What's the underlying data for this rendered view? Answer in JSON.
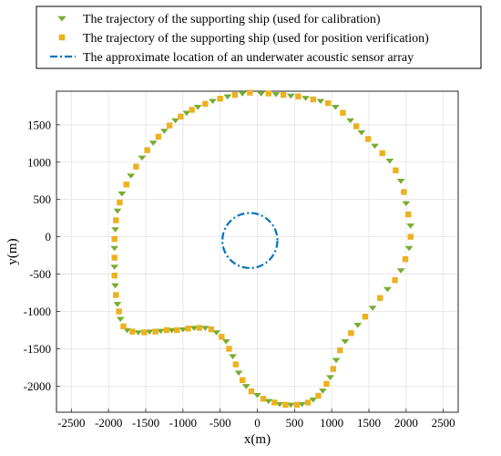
{
  "chart_data": {
    "type": "scatter",
    "title": "",
    "xlabel": "x(m)",
    "ylabel": "y(m)",
    "xlim": [
      -2700,
      2700
    ],
    "ylim": [
      -2350,
      1950
    ],
    "xticks": [
      -2500,
      -2000,
      -1500,
      -1000,
      -500,
      0,
      500,
      1000,
      1500,
      2000,
      2500
    ],
    "yticks": [
      -2000,
      -1500,
      -1000,
      -500,
      0,
      500,
      1000,
      1500
    ],
    "grid": true,
    "legend_position": "top",
    "legend": [
      {
        "label": "The trajectory of the supporting ship (used for calibration)",
        "marker": "triangle-down",
        "color": "#77ac30"
      },
      {
        "label": "The trajectory of the supporting ship (used for position verification)",
        "marker": "square",
        "color": "#edb120"
      },
      {
        "label": "The approximate location of an underwater acoustic sensor array",
        "marker": "dash-dot-line",
        "color": "#0072bd"
      }
    ],
    "series": [
      {
        "name": "The trajectory of the supporting ship (used for calibration)",
        "marker": "triangle-down",
        "color": "#77ac30",
        "points": [
          [
            -200,
            1920
          ],
          [
            -400,
            1880
          ],
          [
            -600,
            1820
          ],
          [
            -800,
            1740
          ],
          [
            -950,
            1660
          ],
          [
            -1100,
            1560
          ],
          [
            -1250,
            1420
          ],
          [
            -1400,
            1260
          ],
          [
            -1550,
            1060
          ],
          [
            -1700,
            820
          ],
          [
            -1820,
            580
          ],
          [
            -1880,
            350
          ],
          [
            -1910,
            100
          ],
          [
            -1920,
            -150
          ],
          [
            -1920,
            -400
          ],
          [
            -1910,
            -650
          ],
          [
            -1880,
            -900
          ],
          [
            -1840,
            -1100
          ],
          [
            -1750,
            -1250
          ],
          [
            -1600,
            -1280
          ],
          [
            -1450,
            -1270
          ],
          [
            -1300,
            -1260
          ],
          [
            -1150,
            -1250
          ],
          [
            -1000,
            -1240
          ],
          [
            -850,
            -1220
          ],
          [
            -700,
            -1220
          ],
          [
            -550,
            -1280
          ],
          [
            -420,
            -1400
          ],
          [
            -330,
            -1600
          ],
          [
            -250,
            -1820
          ],
          [
            -150,
            -2000
          ],
          [
            0,
            -2120
          ],
          [
            150,
            -2200
          ],
          [
            300,
            -2240
          ],
          [
            450,
            -2250
          ],
          [
            600,
            -2240
          ],
          [
            750,
            -2180
          ],
          [
            880,
            -2060
          ],
          [
            980,
            -1880
          ],
          [
            1060,
            -1650
          ],
          [
            1180,
            -1400
          ],
          [
            1350,
            -1180
          ],
          [
            1550,
            -950
          ],
          [
            1750,
            -700
          ],
          [
            1930,
            -450
          ],
          [
            2040,
            -150
          ],
          [
            2060,
            150
          ],
          [
            2000,
            450
          ],
          [
            1930,
            750
          ],
          [
            1780,
            1020
          ],
          [
            1580,
            1220
          ],
          [
            1400,
            1400
          ],
          [
            1250,
            1560
          ],
          [
            1050,
            1740
          ],
          [
            850,
            1820
          ],
          [
            650,
            1860
          ],
          [
            450,
            1890
          ],
          [
            250,
            1910
          ],
          [
            50,
            1920
          ]
        ]
      },
      {
        "name": "The trajectory of the supporting ship (used for position verification)",
        "marker": "square",
        "color": "#edb120",
        "points": [
          [
            -100,
            1930
          ],
          [
            -300,
            1900
          ],
          [
            -500,
            1850
          ],
          [
            -700,
            1780
          ],
          [
            -880,
            1700
          ],
          [
            -1030,
            1610
          ],
          [
            -1180,
            1490
          ],
          [
            -1330,
            1340
          ],
          [
            -1480,
            1160
          ],
          [
            -1630,
            940
          ],
          [
            -1760,
            700
          ],
          [
            -1850,
            460
          ],
          [
            -1900,
            220
          ],
          [
            -1920,
            -30
          ],
          [
            -1920,
            -280
          ],
          [
            -1920,
            -520
          ],
          [
            -1900,
            -780
          ],
          [
            -1860,
            -1000
          ],
          [
            -1800,
            -1200
          ],
          [
            -1680,
            -1270
          ],
          [
            -1520,
            -1280
          ],
          [
            -1370,
            -1270
          ],
          [
            -1220,
            -1250
          ],
          [
            -1080,
            -1250
          ],
          [
            -930,
            -1230
          ],
          [
            -780,
            -1220
          ],
          [
            -620,
            -1240
          ],
          [
            -480,
            -1340
          ],
          [
            -380,
            -1500
          ],
          [
            -290,
            -1710
          ],
          [
            -200,
            -1920
          ],
          [
            -80,
            -2070
          ],
          [
            80,
            -2170
          ],
          [
            230,
            -2220
          ],
          [
            380,
            -2250
          ],
          [
            530,
            -2250
          ],
          [
            680,
            -2220
          ],
          [
            820,
            -2130
          ],
          [
            930,
            -1970
          ],
          [
            1020,
            -1770
          ],
          [
            1110,
            -1520
          ],
          [
            1260,
            -1290
          ],
          [
            1450,
            -1070
          ],
          [
            1650,
            -820
          ],
          [
            1850,
            -580
          ],
          [
            1990,
            -300
          ],
          [
            2060,
            0
          ],
          [
            2030,
            300
          ],
          [
            1970,
            600
          ],
          [
            1860,
            890
          ],
          [
            1680,
            1120
          ],
          [
            1490,
            1310
          ],
          [
            1330,
            1480
          ],
          [
            1150,
            1660
          ],
          [
            950,
            1790
          ],
          [
            750,
            1840
          ],
          [
            550,
            1880
          ],
          [
            350,
            1900
          ],
          [
            150,
            1920
          ]
        ]
      },
      {
        "name": "The approximate location of an underwater acoustic sensor array",
        "marker": "dash-dot-line",
        "color": "#0072bd",
        "center": [
          -100,
          -50
        ],
        "radius": 370
      }
    ]
  }
}
